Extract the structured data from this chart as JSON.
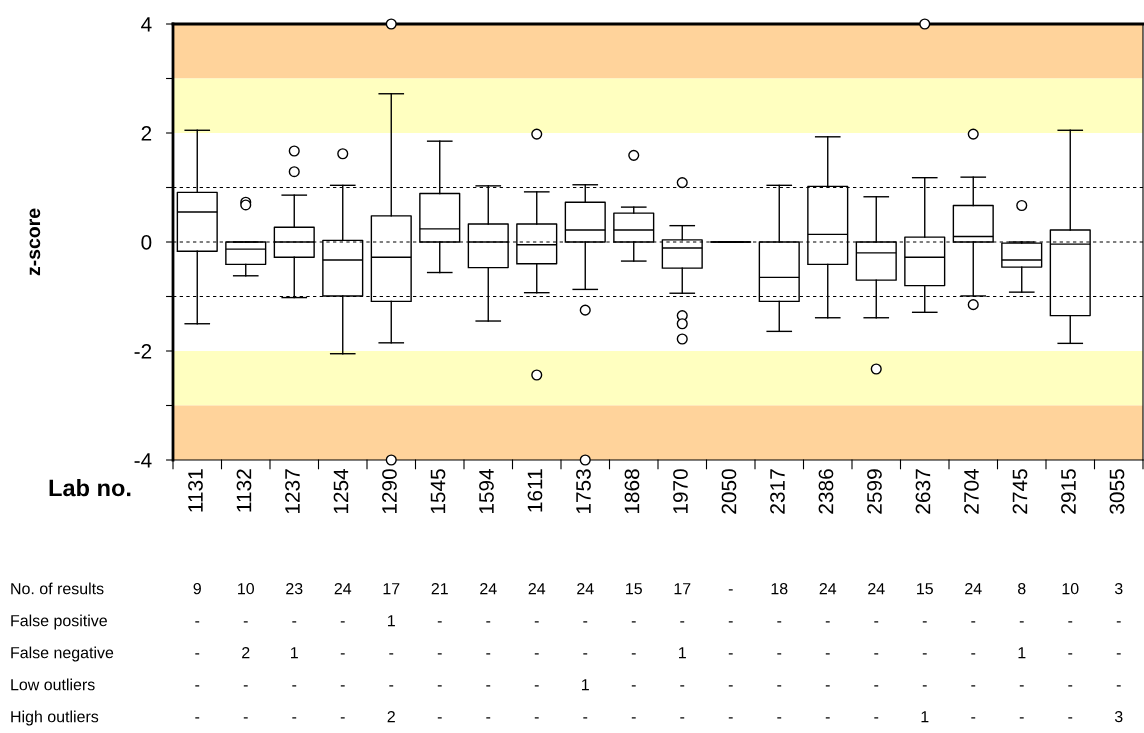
{
  "chart_data": {
    "type": "box",
    "xlabel": "Lab no.",
    "ylabel": "z-score",
    "categories": [
      "1131",
      "1132",
      "1237",
      "1254",
      "1290",
      "1545",
      "1594",
      "1611",
      "1753",
      "1868",
      "1970",
      "2050",
      "2317",
      "2386",
      "2599",
      "2637",
      "2704",
      "2745",
      "2915",
      "3055"
    ],
    "boxes": [
      {
        "low": -1.5,
        "q1": -0.17,
        "median": 0.55,
        "q3": 0.91,
        "high": 2.05
      },
      {
        "low": -0.62,
        "q1": -0.41,
        "median": -0.13,
        "q3": 0,
        "high": 0,
        "outliers": [
          0.73,
          0.68
        ]
      },
      {
        "low": -1.02,
        "q1": -0.28,
        "median": 0,
        "q3": 0.27,
        "high": 0.86,
        "outliers": [
          1.67,
          1.29
        ]
      },
      {
        "low": -2.05,
        "q1": -0.99,
        "median": -0.33,
        "q3": 0.03,
        "high": 1.04,
        "outliers": [
          1.62
        ]
      },
      {
        "low": -1.85,
        "q1": -1.09,
        "median": -0.28,
        "q3": 0.48,
        "high": 2.72,
        "outliers": [
          4,
          -4
        ]
      },
      {
        "low": -0.56,
        "q1": 0,
        "median": 0.24,
        "q3": 0.89,
        "high": 1.85
      },
      {
        "low": -1.45,
        "q1": -0.47,
        "median": 0,
        "q3": 0.33,
        "high": 1.03
      },
      {
        "low": -0.93,
        "q1": -0.4,
        "median": -0.05,
        "q3": 0.33,
        "high": 0.92,
        "outliers": [
          1.98,
          -2.44
        ]
      },
      {
        "low": -0.87,
        "q1": 0,
        "median": 0.22,
        "q3": 0.73,
        "high": 1.05,
        "outliers": [
          -1.25,
          -4
        ]
      },
      {
        "low": -0.35,
        "q1": 0,
        "median": 0.22,
        "q3": 0.53,
        "high": 0.64,
        "outliers": [
          1.59
        ]
      },
      {
        "low": -0.94,
        "q1": -0.48,
        "median": -0.11,
        "q3": 0.04,
        "high": 0.3,
        "outliers": [
          1.09,
          -1.35,
          -1.5,
          -1.78
        ]
      },
      {
        "low": 0,
        "q1": 0,
        "median": 0,
        "q3": 0,
        "high": 0
      },
      {
        "low": -1.64,
        "q1": -1.09,
        "median": -0.65,
        "q3": 0,
        "high": 1.04
      },
      {
        "low": -1.39,
        "q1": -0.41,
        "median": 0.14,
        "q3": 1.02,
        "high": 1.93
      },
      {
        "low": -1.39,
        "q1": -0.7,
        "median": -0.2,
        "q3": 0,
        "high": 0.83,
        "outliers": [
          -2.33
        ]
      },
      {
        "low": -1.29,
        "q1": -0.8,
        "median": -0.28,
        "q3": 0.09,
        "high": 1.18,
        "outliers": [
          4
        ]
      },
      {
        "low": -0.99,
        "q1": 0,
        "median": 0.1,
        "q3": 0.67,
        "high": 1.19,
        "outliers": [
          1.98,
          -1.15
        ]
      },
      {
        "low": -0.92,
        "q1": -0.46,
        "median": -0.33,
        "q3": -0.02,
        "high": 0,
        "outliers": [
          0.67
        ]
      },
      {
        "low": -1.86,
        "q1": -1.35,
        "median": -0.04,
        "q3": 0.22,
        "high": 2.05
      },
      null
    ],
    "ylim": [
      -4,
      4
    ],
    "yticks": [
      4,
      {
        "value": 3,
        "label": null
      },
      2,
      {
        "value": 1,
        "label": null
      },
      0,
      {
        "value": -1,
        "label": null
      },
      -2,
      {
        "value": -3,
        "label": null
      },
      -4
    ],
    "bands": [
      {
        "axis": "y",
        "from": 3,
        "to": 4,
        "color": "#ffd39b"
      },
      {
        "axis": "y",
        "from": 2,
        "to": 3,
        "color": "#ffffc0"
      },
      {
        "axis": "y",
        "from": -3,
        "to": -2,
        "color": "#ffffc0"
      },
      {
        "axis": "y",
        "from": -4,
        "to": -3,
        "color": "#ffd39b"
      }
    ],
    "ref_lines": [
      {
        "axis": "y",
        "value": 1,
        "line_style": "dashed"
      },
      {
        "axis": "y",
        "value": 0,
        "line_style": "dashed"
      },
      {
        "axis": "y",
        "value": -1,
        "line_style": "dashed"
      }
    ],
    "grid": false,
    "annotations": [
      "No. of results",
      "9",
      "10",
      "23",
      "24",
      "17",
      "21",
      "24",
      "24",
      "24",
      "15",
      "17",
      "-",
      "18",
      "24",
      "24",
      "15",
      "24",
      "8",
      "10",
      "3",
      "False positive",
      "-",
      "-",
      "-",
      "-",
      "1",
      "-",
      "-",
      "-",
      "-",
      "-",
      "-",
      "-",
      "-",
      "-",
      "-",
      "-",
      "-",
      "-",
      "-",
      "-",
      "False negative",
      "-",
      "2",
      "1",
      "-",
      "-",
      "-",
      "-",
      "-",
      "-",
      "-",
      "1",
      "-",
      "-",
      "-",
      "-",
      "-",
      "-",
      "1",
      "-",
      "-",
      "Low outliers",
      "-",
      "-",
      "-",
      "-",
      "-",
      "-",
      "-",
      "-",
      "1",
      "-",
      "-",
      "-",
      "-",
      "-",
      "-",
      "-",
      "-",
      "-",
      "-",
      "-",
      "High outliers",
      "-",
      "-",
      "-",
      "-",
      "2",
      "-",
      "-",
      "-",
      "-",
      "-",
      "-",
      "-",
      "-",
      "-",
      "-",
      "1",
      "-",
      "-",
      "-",
      "3"
    ]
  }
}
